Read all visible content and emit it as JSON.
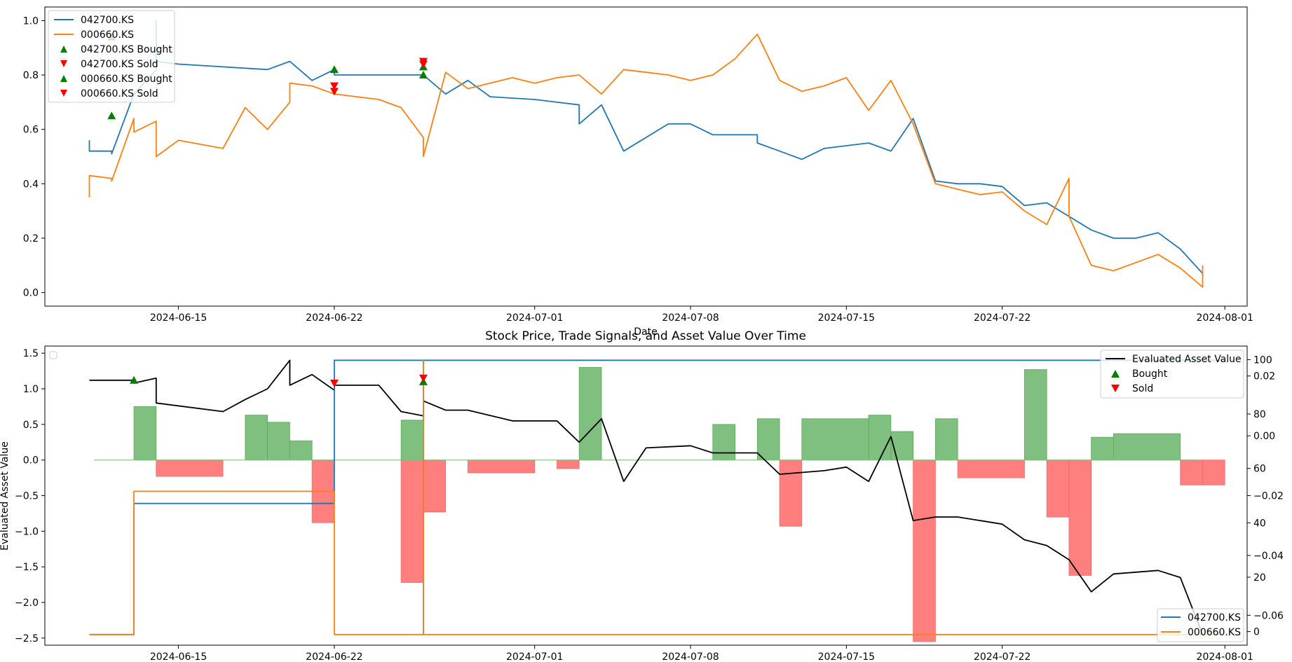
{
  "colors": {
    "blue": "#1f77b4",
    "orange": "#ff7f0e",
    "green": "#008000",
    "red": "#ff0000",
    "black": "#000000",
    "bar_green": "#7fbf7f",
    "bar_red": "#ff7f7f"
  },
  "chart_data": [
    {
      "type": "line",
      "xlabel": "Date",
      "ylabel": "",
      "title": "",
      "xlim": [
        "2024-06-09",
        "2024-08-02"
      ],
      "ylim": [
        -0.05,
        1.05
      ],
      "x_ticks": [
        "2024-06-15",
        "2024-06-22",
        "2024-07-01",
        "2024-07-08",
        "2024-07-15",
        "2024-07-22",
        "2024-08-01"
      ],
      "y_ticks": [
        "0.0",
        "0.2",
        "0.4",
        "0.6",
        "0.8",
        "1.0"
      ],
      "legend": {
        "position": "top-left",
        "entries": [
          "042700.KS",
          "000660.KS",
          "042700.KS Bought",
          "042700.KS Sold",
          "000660.KS Bought",
          "000660.KS Sold"
        ]
      },
      "series": [
        {
          "name": "042700.KS",
          "color": "blue",
          "x": [
            "2024-06-11",
            "2024-06-11",
            "2024-06-12",
            "2024-06-12",
            "2024-06-13",
            "2024-06-14",
            "2024-06-14",
            "2024-06-14",
            "2024-06-15",
            "2024-06-19",
            "2024-06-20",
            "2024-06-21",
            "2024-06-22",
            "2024-06-22",
            "2024-06-26",
            "2024-06-27",
            "2024-06-28",
            "2024-06-29",
            "2024-07-01",
            "2024-07-02",
            "2024-07-03",
            "2024-07-03",
            "2024-07-04",
            "2024-07-05",
            "2024-07-05",
            "2024-07-07",
            "2024-07-08",
            "2024-07-09",
            "2024-07-11",
            "2024-07-11",
            "2024-07-12",
            "2024-07-13",
            "2024-07-14",
            "2024-07-16",
            "2024-07-17",
            "2024-07-18",
            "2024-07-19",
            "2024-07-20",
            "2024-07-21",
            "2024-07-22",
            "2024-07-23",
            "2024-07-24",
            "2024-07-25",
            "2024-07-26",
            "2024-07-27",
            "2024-07-28",
            "2024-07-29",
            "2024-07-30",
            "2024-07-31",
            "2024-07-31"
          ],
          "values": [
            0.56,
            0.52,
            0.52,
            0.51,
            0.73,
            0.82,
            1.0,
            0.85,
            0.84,
            0.82,
            0.85,
            0.78,
            0.82,
            0.8,
            0.8,
            0.73,
            0.78,
            0.72,
            0.71,
            0.7,
            0.69,
            0.62,
            0.69,
            0.52,
            0.52,
            0.62,
            0.62,
            0.58,
            0.58,
            0.55,
            0.52,
            0.49,
            0.53,
            0.55,
            0.52,
            0.64,
            0.41,
            0.4,
            0.4,
            0.39,
            0.32,
            0.33,
            0.28,
            0.23,
            0.2,
            0.2,
            0.22,
            0.16,
            0.07,
            0.06
          ]
        },
        {
          "name": "000660.KS",
          "color": "orange",
          "x": [
            "2024-06-11",
            "2024-06-11",
            "2024-06-12",
            "2024-06-12",
            "2024-06-13",
            "2024-06-13",
            "2024-06-14",
            "2024-06-14",
            "2024-06-15",
            "2024-06-17",
            "2024-06-18",
            "2024-06-19",
            "2024-06-20",
            "2024-06-20",
            "2024-06-21",
            "2024-06-22",
            "2024-06-24",
            "2024-06-25",
            "2024-06-26",
            "2024-06-26",
            "2024-06-27",
            "2024-06-28",
            "2024-06-30",
            "2024-07-01",
            "2024-07-02",
            "2024-07-03",
            "2024-07-04",
            "2024-07-05",
            "2024-07-06",
            "2024-07-07",
            "2024-07-08",
            "2024-07-09",
            "2024-07-10",
            "2024-07-11",
            "2024-07-12",
            "2024-07-13",
            "2024-07-14",
            "2024-07-15",
            "2024-07-16",
            "2024-07-17",
            "2024-07-18",
            "2024-07-19",
            "2024-07-20",
            "2024-07-21",
            "2024-07-22",
            "2024-07-23",
            "2024-07-24",
            "2024-07-25",
            "2024-07-25",
            "2024-07-26",
            "2024-07-27",
            "2024-07-29",
            "2024-07-30",
            "2024-07-31",
            "2024-07-31"
          ],
          "values": [
            0.35,
            0.43,
            0.42,
            0.41,
            0.64,
            0.59,
            0.63,
            0.5,
            0.56,
            0.53,
            0.68,
            0.6,
            0.7,
            0.77,
            0.76,
            0.73,
            0.71,
            0.68,
            0.57,
            0.5,
            0.81,
            0.75,
            0.79,
            0.77,
            0.79,
            0.8,
            0.73,
            0.82,
            0.81,
            0.8,
            0.78,
            0.8,
            0.86,
            0.95,
            0.78,
            0.74,
            0.76,
            0.79,
            0.67,
            0.78,
            0.62,
            0.4,
            0.38,
            0.36,
            0.37,
            0.3,
            0.25,
            0.42,
            0.28,
            0.1,
            0.08,
            0.14,
            0.09,
            0.02,
            0.1
          ]
        }
      ],
      "markers": [
        {
          "name": "042700.KS Bought",
          "type": "buy",
          "color": "green",
          "x": [
            "2024-06-12",
            "2024-06-22",
            "2024-06-26"
          ],
          "values": [
            0.94,
            0.82,
            0.83
          ]
        },
        {
          "name": "042700.KS Sold",
          "type": "sell",
          "color": "red",
          "x": [
            "2024-06-22",
            "2024-06-26"
          ],
          "values": [
            0.74,
            0.84
          ]
        },
        {
          "name": "000660.KS Bought",
          "type": "buy",
          "color": "green",
          "x": [
            "2024-06-12",
            "2024-06-26"
          ],
          "values": [
            0.65,
            0.8
          ]
        },
        {
          "name": "000660.KS Sold",
          "type": "sell",
          "color": "red",
          "x": [
            "2024-06-22",
            "2024-06-26"
          ],
          "values": [
            0.76,
            0.85
          ]
        }
      ]
    },
    {
      "type": "line",
      "title": "Stock Price, Trade Signals, and Asset Value Over Time",
      "xlabel": "",
      "ylabel": "Evaluated Asset Value",
      "xlim": [
        "2024-06-09",
        "2024-08-02"
      ],
      "ylim": [
        -2.6,
        1.6
      ],
      "x_ticks": [
        "2024-06-15",
        "2024-06-22",
        "2024-07-01",
        "2024-07-08",
        "2024-07-15",
        "2024-07-22",
        "2024-08-01"
      ],
      "y_ticks": [
        "1.5",
        "1.0",
        "0.5",
        "0.0",
        "−0.5",
        "−1.0",
        "−1.5",
        "−2.0",
        "−2.5"
      ],
      "right_axis_1": {
        "ylim": [
          -0.07,
          0.03
        ],
        "ticks": [
          "0.02",
          "0.00",
          "−0.02",
          "−0.04",
          "−0.06"
        ]
      },
      "right_axis_2": {
        "ylim": [
          -5,
          105
        ],
        "ticks": [
          "100",
          "80",
          "60",
          "40",
          "20",
          "0"
        ]
      },
      "legend_top_right": [
        "Evaluated Asset Value",
        "Bought",
        "Sold"
      ],
      "legend_bottom_right": [
        "042700.KS",
        "000660.KS"
      ],
      "series": [
        {
          "name": "Evaluated Asset Value",
          "color": "black",
          "x": [
            "2024-06-11",
            "2024-06-13",
            "2024-06-13",
            "2024-06-14",
            "2024-06-14",
            "2024-06-17",
            "2024-06-18",
            "2024-06-19",
            "2024-06-20",
            "2024-06-20",
            "2024-06-21",
            "2024-06-22",
            "2024-06-22",
            "2024-06-24",
            "2024-06-25",
            "2024-06-26",
            "2024-06-26",
            "2024-06-27",
            "2024-06-28",
            "2024-06-30",
            "2024-07-01",
            "2024-07-02",
            "2024-07-03",
            "2024-07-04",
            "2024-07-05",
            "2024-07-06",
            "2024-07-08",
            "2024-07-09",
            "2024-07-11",
            "2024-07-12",
            "2024-07-14",
            "2024-07-15",
            "2024-07-16",
            "2024-07-17",
            "2024-07-18",
            "2024-07-19",
            "2024-07-20",
            "2024-07-22",
            "2024-07-23",
            "2024-07-24",
            "2024-07-25",
            "2024-07-26",
            "2024-07-27",
            "2024-07-29",
            "2024-07-30",
            "2024-07-31"
          ],
          "values": [
            1.12,
            1.12,
            1.08,
            1.15,
            0.8,
            0.68,
            0.85,
            1.0,
            1.4,
            1.05,
            1.2,
            0.98,
            1.05,
            1.05,
            0.68,
            0.62,
            0.83,
            0.7,
            0.7,
            0.55,
            0.55,
            0.55,
            0.25,
            0.58,
            -0.3,
            0.17,
            0.2,
            0.1,
            0.1,
            -0.2,
            -0.15,
            -0.1,
            -0.3,
            0.33,
            -0.85,
            -0.8,
            -0.8,
            -0.9,
            -1.12,
            -1.2,
            -1.4,
            -1.85,
            -1.6,
            -1.55,
            -1.65,
            -2.45
          ]
        },
        {
          "name": "042700.KS",
          "color": "blue",
          "x": [
            "2024-06-11",
            "2024-06-13",
            "2024-06-13",
            "2024-06-22",
            "2024-06-22",
            "2024-06-26",
            "2024-06-26",
            "2024-06-26",
            "2024-06-26",
            "2024-08-01"
          ],
          "values": [
            -2.45,
            -2.45,
            -0.61,
            -0.61,
            1.4,
            1.4,
            -2.45,
            1.4,
            1.4,
            1.4
          ]
        },
        {
          "name": "000660.KS",
          "color": "orange",
          "x": [
            "2024-06-11",
            "2024-06-13",
            "2024-06-13",
            "2024-06-22",
            "2024-06-22",
            "2024-06-26",
            "2024-06-26",
            "2024-06-26",
            "2024-06-26",
            "2024-08-01"
          ],
          "values": [
            -2.45,
            -2.45,
            -0.44,
            -0.44,
            -2.45,
            -2.45,
            1.4,
            -2.45,
            -2.45,
            -2.45
          ]
        }
      ],
      "bars": [
        {
          "x0": "2024-06-13",
          "x1": "2024-06-14",
          "value": 0.75
        },
        {
          "x0": "2024-06-14",
          "x1": "2024-06-17",
          "value": -0.23
        },
        {
          "x0": "2024-06-18",
          "x1": "2024-06-19",
          "value": 0.63
        },
        {
          "x0": "2024-06-19",
          "x1": "2024-06-20",
          "value": 0.53
        },
        {
          "x0": "2024-06-20",
          "x1": "2024-06-21",
          "value": 0.27
        },
        {
          "x0": "2024-06-21",
          "x1": "2024-06-22",
          "value": -0.88
        },
        {
          "x0": "2024-06-25",
          "x1": "2024-06-26",
          "value": -1.72
        },
        {
          "x0": "2024-06-25",
          "x1": "2024-06-26",
          "value": 0.56
        },
        {
          "x0": "2024-06-26",
          "x1": "2024-06-27",
          "value": -0.73
        },
        {
          "x0": "2024-06-28",
          "x1": "2024-07-01",
          "value": -0.18
        },
        {
          "x0": "2024-07-02",
          "x1": "2024-07-03",
          "value": -0.12
        },
        {
          "x0": "2024-07-03",
          "x1": "2024-07-04",
          "value": 1.3
        },
        {
          "x0": "2024-07-09",
          "x1": "2024-07-10",
          "value": 0.5
        },
        {
          "x0": "2024-07-11",
          "x1": "2024-07-12",
          "value": 0.58
        },
        {
          "x0": "2024-07-12",
          "x1": "2024-07-13",
          "value": -0.93
        },
        {
          "x0": "2024-07-13",
          "x1": "2024-07-16",
          "value": 0.58
        },
        {
          "x0": "2024-07-16",
          "x1": "2024-07-17",
          "value": 0.63
        },
        {
          "x0": "2024-07-17",
          "x1": "2024-07-18",
          "value": 0.4
        },
        {
          "x0": "2024-07-18",
          "x1": "2024-07-19",
          "value": -2.55
        },
        {
          "x0": "2024-07-19",
          "x1": "2024-07-20",
          "value": 0.58
        },
        {
          "x0": "2024-07-20",
          "x1": "2024-07-23",
          "value": -0.25
        },
        {
          "x0": "2024-07-23",
          "x1": "2024-07-24",
          "value": 1.27
        },
        {
          "x0": "2024-07-24",
          "x1": "2024-07-25",
          "value": -0.8
        },
        {
          "x0": "2024-07-25",
          "x1": "2024-07-26",
          "value": -1.62
        },
        {
          "x0": "2024-07-26",
          "x1": "2024-07-27",
          "value": 0.32
        },
        {
          "x0": "2024-07-27",
          "x1": "2024-07-30",
          "value": 0.37
        },
        {
          "x0": "2024-07-30",
          "x1": "2024-07-31",
          "value": -0.35
        },
        {
          "x0": "2024-07-31",
          "x1": "2024-08-01",
          "value": -0.35
        }
      ],
      "markers": [
        {
          "name": "Bought",
          "type": "buy",
          "color": "green",
          "x": [
            "2024-06-13",
            "2024-06-26"
          ],
          "values": [
            1.12,
            1.1
          ]
        },
        {
          "name": "Sold",
          "type": "sell",
          "color": "red",
          "x": [
            "2024-06-22",
            "2024-06-26"
          ],
          "values": [
            1.08,
            1.15
          ]
        }
      ]
    }
  ]
}
